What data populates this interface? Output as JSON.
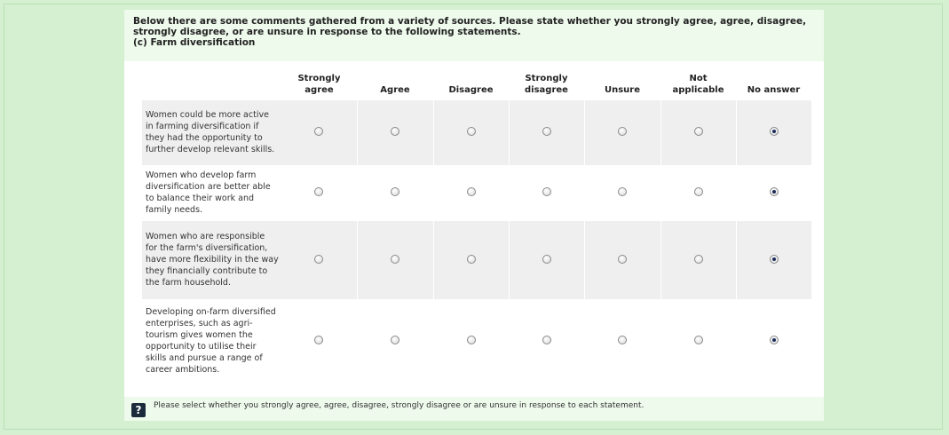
{
  "question": {
    "intro": "Below there are some comments gathered from a variety of sources. Please state whether you strongly agree, agree, disagree, strongly disagree, or are unsure in response to the following statements.",
    "subtitle": "(c) Farm diversification"
  },
  "columns": [
    {
      "line1": "Strongly",
      "line2": "agree"
    },
    {
      "line1": "",
      "line2": "Agree"
    },
    {
      "line1": "",
      "line2": "Disagree"
    },
    {
      "line1": "Strongly",
      "line2": "disagree"
    },
    {
      "line1": "",
      "line2": "Unsure"
    },
    {
      "line1": "Not",
      "line2": "applicable"
    },
    {
      "line1": "",
      "line2": "No answer"
    }
  ],
  "rows": [
    {
      "statement": "Women could be more active in farming diversification if they had the opportunity to further develop relevant skills.",
      "selected": 6
    },
    {
      "statement": "Women who develop farm diversification are better able to balance their work and family needs.",
      "selected": 6
    },
    {
      "statement": "Women who are responsible for the farm's diversification, have more flexibility in the way they financially contribute to the farm household.",
      "selected": 6
    },
    {
      "statement": "Developing on-farm diversified enterprises, such as agri-tourism gives women the opportunity to utilise their skills and pursue a range of career ambitions.",
      "selected": 6
    }
  ],
  "help": {
    "icon": "question-mark-icon",
    "icon_glyph": "?",
    "text": "Please select whether you strongly agree, agree, disagree, strongly disagree or are unsure in response to each statement."
  }
}
